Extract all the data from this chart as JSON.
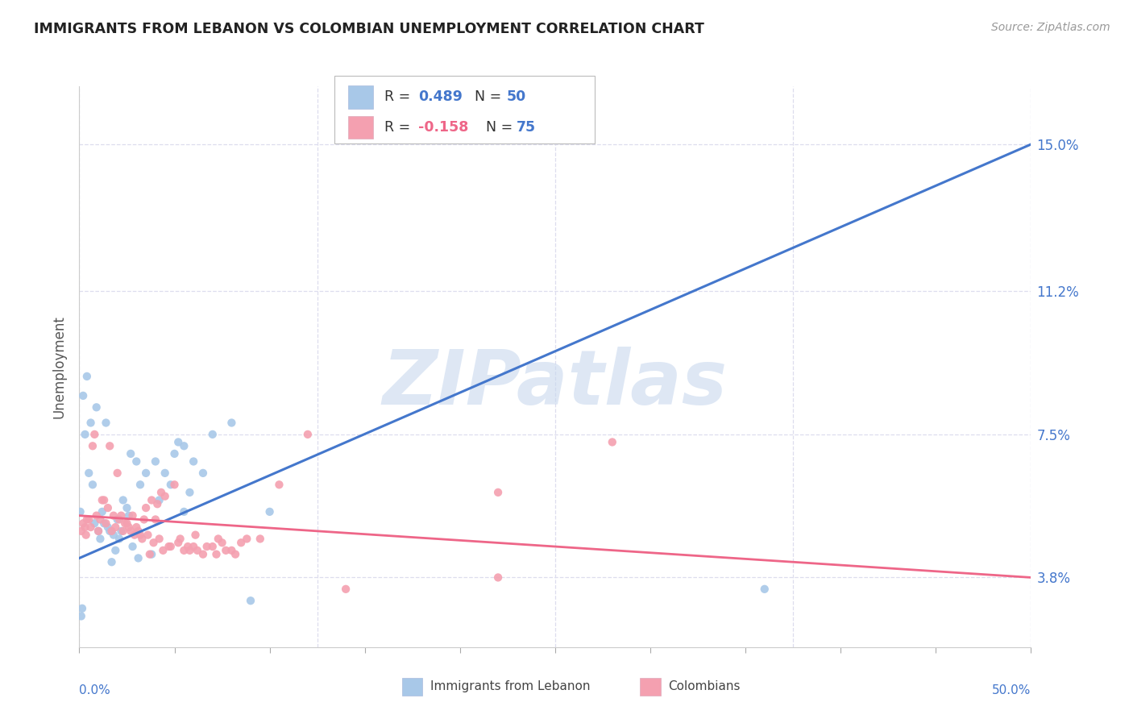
{
  "title": "IMMIGRANTS FROM LEBANON VS COLOMBIAN UNEMPLOYMENT CORRELATION CHART",
  "source": "Source: ZipAtlas.com",
  "ylabel": "Unemployment",
  "ytick_values": [
    3.8,
    7.5,
    11.2,
    15.0
  ],
  "xmin": 0.0,
  "xmax": 50.0,
  "ymin": 2.0,
  "ymax": 16.5,
  "blue_color": "#A8C8E8",
  "pink_color": "#F4A0B0",
  "blue_line_color": "#4477CC",
  "pink_line_color": "#EE6688",
  "blue_scatter_x": [
    0.3,
    0.5,
    0.7,
    0.8,
    1.0,
    1.1,
    1.2,
    1.3,
    1.5,
    1.6,
    1.8,
    2.0,
    2.1,
    2.3,
    2.5,
    3.0,
    3.2,
    3.5,
    4.0,
    4.5,
    5.0,
    5.5,
    6.0,
    7.0,
    8.0,
    0.2,
    0.4,
    0.6,
    0.9,
    1.4,
    1.7,
    2.2,
    2.6,
    2.8,
    3.1,
    3.8,
    4.8,
    5.2,
    5.8,
    9.0,
    36.0,
    0.15,
    0.1,
    0.05,
    1.9,
    4.2,
    6.5,
    5.5,
    2.7,
    10.0
  ],
  "blue_scatter_y": [
    7.5,
    6.5,
    6.2,
    5.2,
    5.0,
    4.8,
    5.5,
    5.2,
    5.1,
    5.0,
    4.9,
    5.3,
    4.8,
    5.8,
    5.6,
    6.8,
    6.2,
    6.5,
    6.8,
    6.5,
    7.0,
    7.2,
    6.8,
    7.5,
    7.8,
    8.5,
    9.0,
    7.8,
    8.2,
    7.8,
    4.2,
    5.0,
    5.4,
    4.6,
    4.3,
    4.4,
    6.2,
    7.3,
    6.0,
    3.2,
    3.5,
    3.0,
    2.8,
    5.5,
    4.5,
    5.8,
    6.5,
    5.5,
    7.0,
    5.5
  ],
  "pink_scatter_x": [
    0.3,
    0.5,
    0.8,
    1.0,
    1.2,
    1.5,
    1.8,
    2.0,
    2.3,
    2.5,
    2.8,
    3.0,
    3.2,
    3.5,
    3.8,
    4.0,
    4.3,
    4.5,
    5.0,
    5.5,
    6.0,
    6.5,
    7.0,
    7.5,
    8.0,
    8.5,
    9.5,
    10.5,
    12.0,
    14.0,
    22.0,
    28.0,
    0.2,
    0.4,
    0.6,
    0.9,
    1.1,
    1.4,
    1.7,
    1.9,
    2.1,
    2.4,
    2.6,
    2.9,
    3.1,
    3.3,
    3.6,
    3.9,
    4.2,
    4.7,
    5.2,
    5.7,
    6.2,
    6.7,
    7.2,
    7.7,
    8.2,
    8.8,
    0.1,
    1.6,
    2.7,
    3.4,
    4.1,
    4.8,
    5.3,
    6.1,
    0.7,
    1.3,
    2.2,
    3.7,
    4.4,
    5.8,
    7.3,
    22.0,
    0.35
  ],
  "pink_scatter_y": [
    5.1,
    5.3,
    7.5,
    5.0,
    5.8,
    5.6,
    5.4,
    6.5,
    5.0,
    5.2,
    5.4,
    5.1,
    4.9,
    5.6,
    5.8,
    5.3,
    6.0,
    5.9,
    6.2,
    4.5,
    4.6,
    4.4,
    4.6,
    4.7,
    4.5,
    4.7,
    4.8,
    6.2,
    7.5,
    3.5,
    3.8,
    7.3,
    5.2,
    5.3,
    5.1,
    5.4,
    5.3,
    5.2,
    5.0,
    5.1,
    5.3,
    5.2,
    5.1,
    4.9,
    5.0,
    4.8,
    4.9,
    4.7,
    4.8,
    4.6,
    4.7,
    4.6,
    4.5,
    4.6,
    4.4,
    4.5,
    4.4,
    4.8,
    5.0,
    7.2,
    5.0,
    5.3,
    5.7,
    4.6,
    4.8,
    4.9,
    7.2,
    5.8,
    5.4,
    4.4,
    4.5,
    4.5,
    4.8,
    6.0,
    4.9
  ],
  "blue_trend_x": [
    0.0,
    50.0
  ],
  "blue_trend_y": [
    4.3,
    15.0
  ],
  "pink_trend_x": [
    0.0,
    50.0
  ],
  "pink_trend_y": [
    5.4,
    3.8
  ],
  "watermark": "ZIPatlas",
  "grid_color": "#DDDDEE",
  "bg_color": "#FFFFFF"
}
